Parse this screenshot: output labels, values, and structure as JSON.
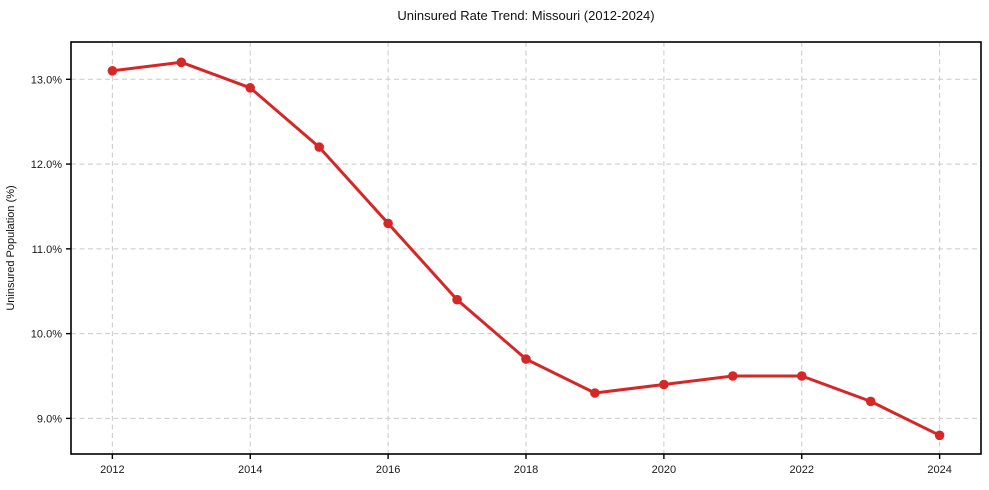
{
  "page": {
    "background_color": "#ffffff"
  },
  "chart_data": {
    "type": "line",
    "title": "Uninsured Rate Trend: Missouri (2012-2024)",
    "xlabel": "",
    "ylabel": "Uninsured Population (%)",
    "x": [
      2012,
      2013,
      2014,
      2015,
      2016,
      2017,
      2018,
      2019,
      2020,
      2021,
      2022,
      2023,
      2024
    ],
    "series": [
      {
        "name": "Uninsured rate",
        "values": [
          13.1,
          13.2,
          12.9,
          12.2,
          11.3,
          10.4,
          9.7,
          9.3,
          9.4,
          9.5,
          9.5,
          9.2,
          8.8
        ],
        "color": "#d62728",
        "marker": "circle",
        "marker_radius": 4.8,
        "line_width": 3
      }
    ],
    "xticks": [
      2012,
      2014,
      2016,
      2018,
      2020,
      2022,
      2024
    ],
    "xtick_labels": [
      "2012",
      "2014",
      "2016",
      "2018",
      "2020",
      "2022",
      "2024"
    ],
    "yticks": [
      9.0,
      10.0,
      11.0,
      12.0,
      13.0
    ],
    "ytick_labels": [
      "9.0%",
      "10.0%",
      "11.0%",
      "12.0%",
      "13.0%"
    ],
    "xlim": [
      2011.4,
      2024.6
    ],
    "ylim": [
      8.58,
      13.44
    ],
    "grid": true,
    "grid_style": "dashed",
    "grid_color": "#c9c9c9",
    "axis_color": "#000000",
    "tick_label_color": "#1a1a1a",
    "legend": "none"
  }
}
